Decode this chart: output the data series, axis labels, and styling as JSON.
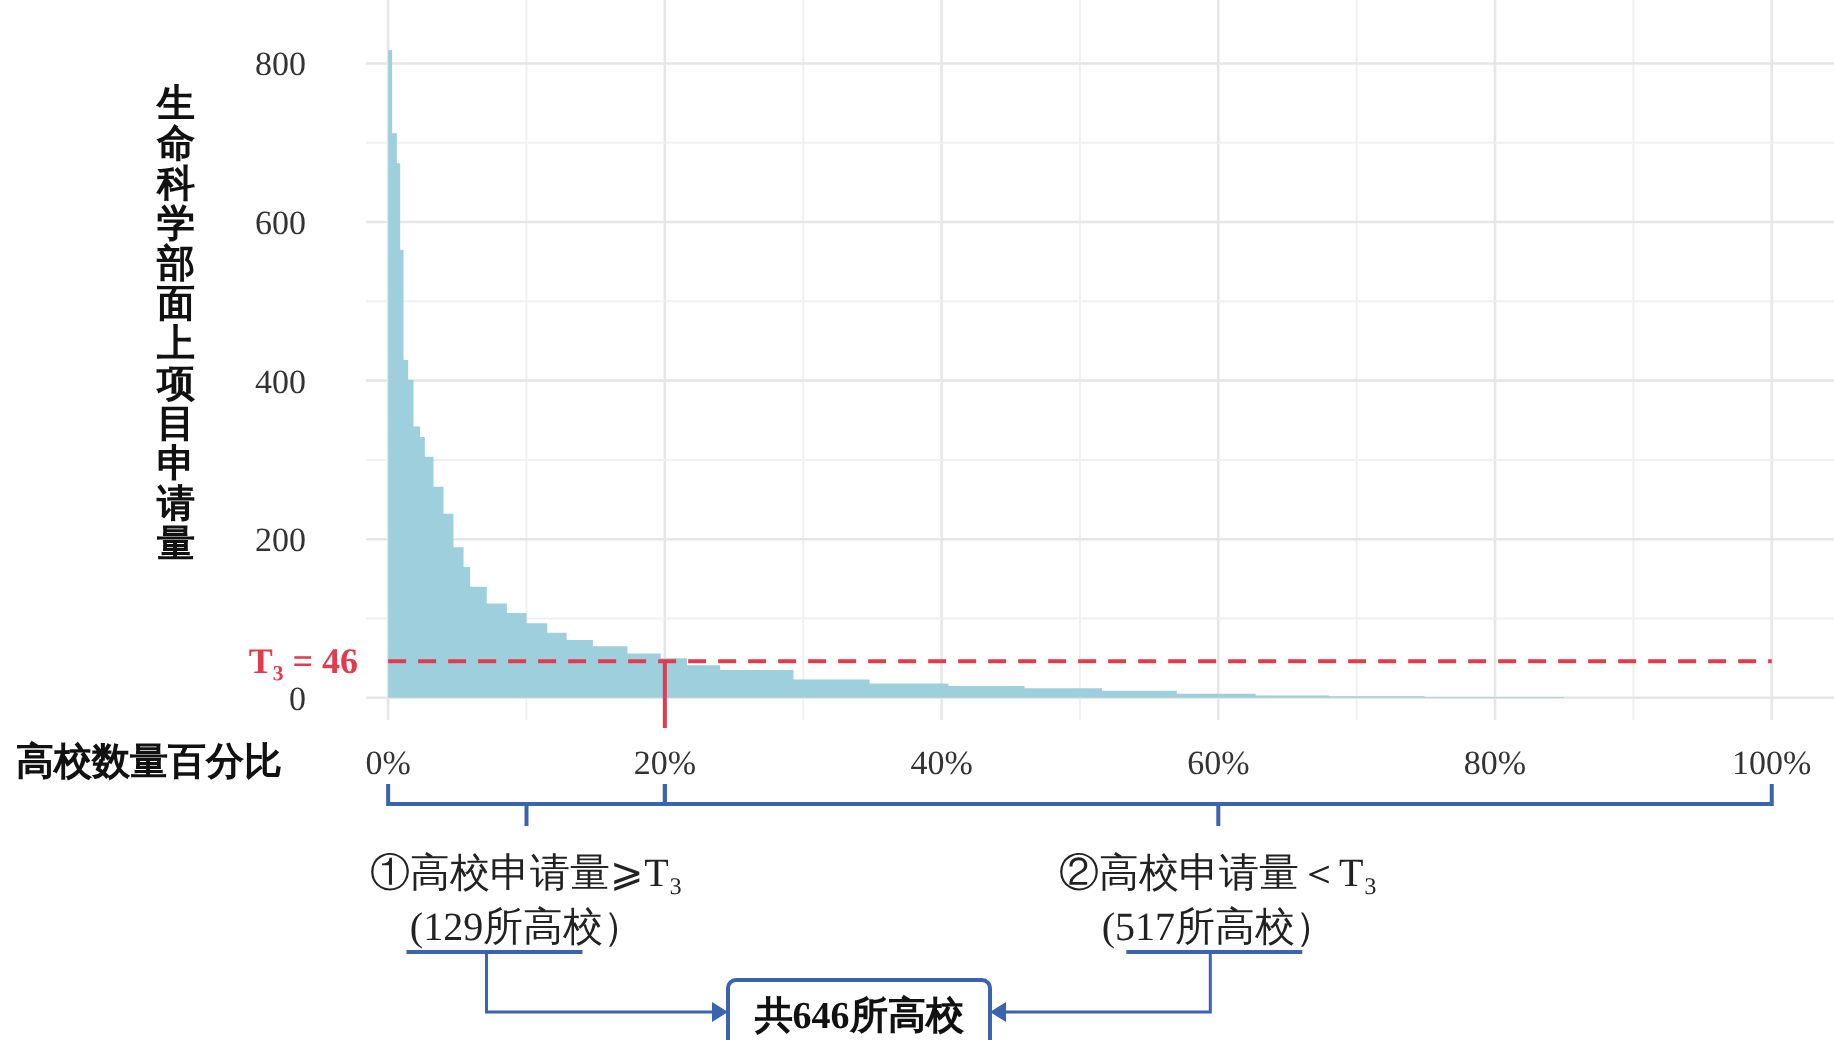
{
  "chart_data": {
    "type": "area",
    "xlabel": "高校数量百分比",
    "ylabel": "生命科学部面上项目申请量",
    "x": [
      0,
      0.14,
      0.29,
      0.63,
      0.87,
      1.11,
      1.45,
      1.83,
      2.31,
      2.65,
      3.28,
      4.0,
      4.72,
      5.45,
      5.93,
      7.13,
      8.58,
      10.0,
      11.5,
      12.9,
      14.8,
      17.3,
      19.7,
      21.6,
      24,
      29.3,
      34.8,
      40.5,
      46,
      51.6,
      57,
      62.7,
      68,
      73.8,
      74.9,
      85,
      100
    ],
    "series": [
      {
        "color": "#9ecfdc",
        "values": [
          817,
          817,
          712,
          674,
          565,
          426,
          401,
          342,
          329,
          304,
          266,
          232,
          190,
          165,
          140,
          119,
          107,
          94,
          82,
          73,
          65,
          56,
          50,
          41,
          35,
          23,
          18,
          15,
          12,
          9,
          5,
          3,
          2,
          2,
          1,
          0,
          0
        ]
      }
    ],
    "xlim": [
      -1.6,
      104.5
    ],
    "ylim": [
      -28,
      880
    ],
    "xticks": [
      {
        "value": 0,
        "label": "0%"
      },
      {
        "value": 20,
        "label": "20%"
      },
      {
        "value": 40,
        "label": "40%"
      },
      {
        "value": 60,
        "label": "60%"
      },
      {
        "value": 80,
        "label": "80%"
      },
      {
        "value": 100,
        "label": "100%"
      }
    ],
    "yticks": [
      0,
      200,
      400,
      600,
      800
    ],
    "grid": true,
    "ref_lines": [
      {
        "axis": "y",
        "value": 46,
        "label": "T₃ = 46",
        "color": "#e03c4e",
        "line_style": "dashed"
      },
      {
        "axis": "x",
        "value": 20,
        "color": "#e03c4e",
        "line_style": "solid"
      }
    ],
    "annotations": [
      "①高校申请量⩾T₃",
      "(129所高校）",
      "②高校申请量＜T₃",
      "(517所高校）",
      "共646所高校"
    ]
  }
}
